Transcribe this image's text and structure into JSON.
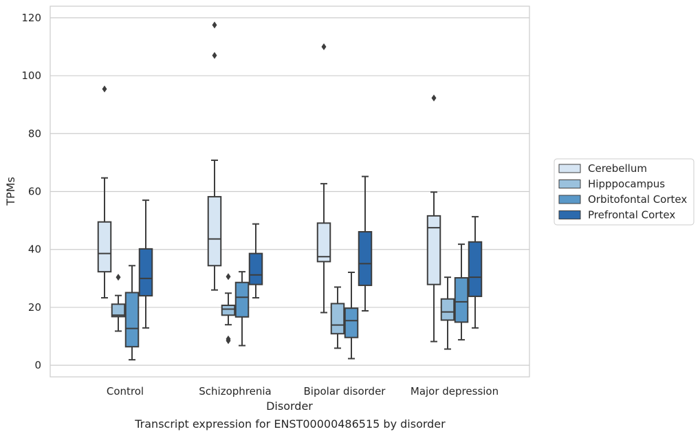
{
  "chart_data": {
    "type": "box",
    "xlabel": "Disorder",
    "ylabel": "TPMs",
    "caption": "Transcript expression for ENST00000486515 by disorder",
    "ylim": [
      -4,
      124
    ],
    "yticks": [
      0,
      20,
      40,
      60,
      80,
      100,
      120
    ],
    "categories": [
      "Control",
      "Schizophrenia",
      "Bipolar disorder",
      "Major depression"
    ],
    "grid": "horizontal",
    "legend_position": "right",
    "series": [
      {
        "name": "Cerebellum",
        "color": "#d6e5f3",
        "boxes": [
          {
            "whisker_low": 23.3,
            "q1": 32.3,
            "median": 38.6,
            "q3": 49.5,
            "whisker_high": 64.7,
            "outliers": [
              95.4
            ]
          },
          {
            "whisker_low": 26.0,
            "q1": 34.4,
            "median": 43.6,
            "q3": 58.2,
            "whisker_high": 70.8,
            "outliers": [
              107.0,
              117.5
            ]
          },
          {
            "whisker_low": 18.2,
            "q1": 35.8,
            "median": 37.5,
            "q3": 49.1,
            "whisker_high": 62.7,
            "outliers": [
              110.0
            ]
          },
          {
            "whisker_low": 8.2,
            "q1": 27.9,
            "median": 47.5,
            "q3": 51.6,
            "whisker_high": 59.8,
            "outliers": [
              92.3
            ]
          }
        ]
      },
      {
        "name": "Hipppocampus",
        "color": "#9ac1dd",
        "boxes": [
          {
            "whisker_low": 11.8,
            "q1": 16.8,
            "median": 17.3,
            "q3": 21.1,
            "whisker_high": 24.1,
            "outliers": [
              30.4
            ]
          },
          {
            "whisker_low": 14.0,
            "q1": 17.3,
            "median": 19.4,
            "q3": 20.7,
            "whisker_high": 24.9,
            "outliers": [
              30.6,
              8.5,
              9.1
            ]
          },
          {
            "whisker_low": 5.9,
            "q1": 10.9,
            "median": 13.9,
            "q3": 21.3,
            "whisker_high": 27.0,
            "outliers": []
          },
          {
            "whisker_low": 5.6,
            "q1": 15.6,
            "median": 18.4,
            "q3": 22.9,
            "whisker_high": 30.4,
            "outliers": []
          }
        ]
      },
      {
        "name": "Orbitofontal Cortex",
        "color": "#5a98c8",
        "boxes": [
          {
            "whisker_low": 1.9,
            "q1": 6.4,
            "median": 12.7,
            "q3": 25.1,
            "whisker_high": 34.4,
            "outliers": []
          },
          {
            "whisker_low": 6.8,
            "q1": 16.7,
            "median": 23.5,
            "q3": 28.6,
            "whisker_high": 32.3,
            "outliers": []
          },
          {
            "whisker_low": 2.3,
            "q1": 9.6,
            "median": 15.4,
            "q3": 19.7,
            "whisker_high": 32.1,
            "outliers": []
          },
          {
            "whisker_low": 8.8,
            "q1": 14.9,
            "median": 21.9,
            "q3": 30.2,
            "whisker_high": 41.8,
            "outliers": []
          }
        ]
      },
      {
        "name": "Prefrontal Cortex",
        "color": "#2c6aad",
        "boxes": [
          {
            "whisker_low": 12.9,
            "q1": 24.0,
            "median": 30.0,
            "q3": 40.2,
            "whisker_high": 57.0,
            "outliers": []
          },
          {
            "whisker_low": 23.3,
            "q1": 27.9,
            "median": 31.2,
            "q3": 38.6,
            "whisker_high": 48.8,
            "outliers": []
          },
          {
            "whisker_low": 18.8,
            "q1": 27.6,
            "median": 35.1,
            "q3": 46.1,
            "whisker_high": 65.2,
            "outliers": []
          },
          {
            "whisker_low": 12.9,
            "q1": 23.8,
            "median": 30.4,
            "q3": 42.6,
            "whisker_high": 51.3,
            "outliers": []
          }
        ]
      }
    ]
  }
}
